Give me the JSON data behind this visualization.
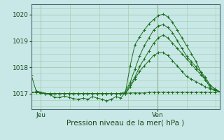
{
  "bg_color": "#c8e8e8",
  "grid_color": "#a0c8a0",
  "line_color": "#1a6e1a",
  "marker_color": "#1a6e1a",
  "xlabel": "Pression niveau de la mer( hPa )",
  "xlabel_fontsize": 7.5,
  "tick_fontsize": 6.5,
  "ylim": [
    1016.4,
    1020.4
  ],
  "yticks": [
    1017,
    1018,
    1019,
    1020
  ],
  "xtick_labels": [
    "Jeu",
    "Ven"
  ],
  "xtick_positions": [
    0.05,
    0.67
  ],
  "vline_x": 0.67,
  "series": [
    [
      1017.7,
      1017.1,
      1017.05,
      1017.0,
      1016.95,
      1016.85,
      1016.85,
      1016.9,
      1016.85,
      1016.8,
      1016.78,
      1016.82,
      1016.78,
      1016.88,
      1016.82,
      1016.78,
      1016.72,
      1016.78,
      1016.88,
      1016.82,
      1017.05,
      1018.05,
      1018.85,
      1019.15,
      1019.42,
      1019.65,
      1019.82,
      1019.97,
      1020.02,
      1019.92,
      1019.72,
      1019.42,
      1019.12,
      1018.82,
      1018.52,
      1018.22,
      1017.82,
      1017.52,
      1017.22,
      1017.12,
      1017.07
    ],
    [
      1017.05,
      1017.05,
      1017.02,
      1017.0,
      1017.0,
      1017.0,
      1017.0,
      1017.0,
      1017.0,
      1017.0,
      1017.0,
      1017.0,
      1017.0,
      1017.0,
      1017.0,
      1017.0,
      1017.0,
      1017.0,
      1017.0,
      1017.0,
      1017.0,
      1017.25,
      1017.55,
      1017.85,
      1018.05,
      1018.25,
      1018.45,
      1018.55,
      1018.55,
      1018.45,
      1018.25,
      1018.05,
      1017.85,
      1017.65,
      1017.55,
      1017.45,
      1017.35,
      1017.25,
      1017.18,
      1017.12,
      1017.07
    ],
    [
      1017.05,
      1017.05,
      1017.02,
      1017.0,
      1017.0,
      1017.0,
      1017.0,
      1017.0,
      1017.0,
      1017.0,
      1017.0,
      1017.0,
      1017.0,
      1017.0,
      1017.0,
      1017.0,
      1017.0,
      1017.0,
      1017.0,
      1017.0,
      1017.0,
      1017.02,
      1017.02,
      1017.02,
      1017.02,
      1017.05,
      1017.05,
      1017.05,
      1017.05,
      1017.05,
      1017.05,
      1017.05,
      1017.05,
      1017.05,
      1017.05,
      1017.05,
      1017.05,
      1017.05,
      1017.05,
      1017.05,
      1017.07
    ],
    [
      1017.05,
      1017.05,
      1017.02,
      1017.0,
      1017.0,
      1017.0,
      1017.0,
      1017.0,
      1017.0,
      1017.0,
      1017.0,
      1017.0,
      1017.0,
      1017.0,
      1017.0,
      1017.0,
      1017.0,
      1017.0,
      1017.0,
      1017.0,
      1017.0,
      1017.32,
      1017.62,
      1018.02,
      1018.32,
      1018.62,
      1018.92,
      1019.12,
      1019.22,
      1019.12,
      1018.92,
      1018.72,
      1018.52,
      1018.32,
      1018.12,
      1017.92,
      1017.72,
      1017.52,
      1017.32,
      1017.17,
      1017.07
    ],
    [
      1017.05,
      1017.05,
      1017.02,
      1017.0,
      1017.0,
      1017.0,
      1017.0,
      1017.0,
      1017.0,
      1017.0,
      1017.0,
      1017.0,
      1017.0,
      1017.0,
      1017.0,
      1017.0,
      1017.0,
      1017.0,
      1017.0,
      1017.0,
      1017.07,
      1017.42,
      1017.92,
      1018.42,
      1018.82,
      1019.12,
      1019.42,
      1019.57,
      1019.62,
      1019.52,
      1019.32,
      1019.02,
      1018.72,
      1018.42,
      1018.22,
      1018.02,
      1017.82,
      1017.62,
      1017.32,
      1017.17,
      1017.07
    ]
  ]
}
